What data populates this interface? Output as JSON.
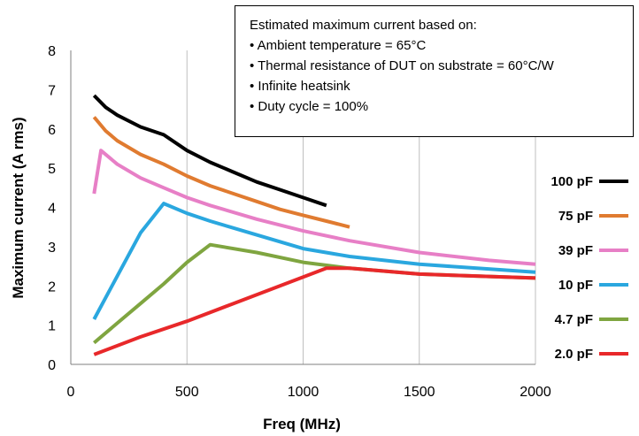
{
  "chart_data": {
    "type": "line",
    "xlabel": "Freq (MHz)",
    "ylabel": "Maximum current (A rms)",
    "xlim": [
      0,
      2000
    ],
    "ylim": [
      0,
      8
    ],
    "x_ticks": [
      0,
      500,
      1000,
      1500,
      2000
    ],
    "y_ticks": [
      0,
      1,
      2,
      3,
      4,
      5,
      6,
      7,
      8
    ],
    "grid": "vertical",
    "legend_position": "right",
    "annotation": {
      "title": "Estimated maximum current based on:",
      "items": [
        "• Ambient temperature = 65°C",
        "• Thermal resistance of DUT on substrate = 60°C/W",
        "• Infinite heatsink",
        "• Duty cycle = 100%"
      ]
    },
    "series": [
      {
        "name": "100 pF",
        "color": "#000000",
        "x": [
          100,
          150,
          200,
          300,
          400,
          500,
          600,
          700,
          800,
          900,
          1000,
          1100
        ],
        "y": [
          6.85,
          6.55,
          6.35,
          6.05,
          5.85,
          5.45,
          5.15,
          4.9,
          4.65,
          4.45,
          4.25,
          4.05
        ]
      },
      {
        "name": "75 pF",
        "color": "#E07B30",
        "x": [
          100,
          150,
          200,
          300,
          400,
          500,
          600,
          700,
          800,
          900,
          1000,
          1100,
          1200
        ],
        "y": [
          6.3,
          5.95,
          5.7,
          5.35,
          5.1,
          4.8,
          4.55,
          4.35,
          4.15,
          3.95,
          3.8,
          3.65,
          3.5
        ]
      },
      {
        "name": "39 pF",
        "color": "#E77FC6",
        "x": [
          100,
          130,
          200,
          300,
          400,
          500,
          600,
          800,
          1000,
          1200,
          1500,
          1800,
          2000
        ],
        "y": [
          4.35,
          5.45,
          5.1,
          4.75,
          4.5,
          4.25,
          4.05,
          3.7,
          3.4,
          3.15,
          2.85,
          2.65,
          2.55
        ]
      },
      {
        "name": "10 pF",
        "color": "#2AA7DF",
        "x": [
          100,
          200,
          300,
          400,
          500,
          600,
          800,
          1000,
          1200,
          1500,
          2000
        ],
        "y": [
          1.15,
          2.25,
          3.35,
          4.1,
          3.85,
          3.65,
          3.3,
          2.95,
          2.75,
          2.55,
          2.35
        ]
      },
      {
        "name": "4.7 pF",
        "color": "#7FA540",
        "x": [
          100,
          200,
          300,
          400,
          500,
          600,
          800,
          1000,
          1200,
          1500,
          2000
        ],
        "y": [
          0.55,
          1.05,
          1.55,
          2.05,
          2.6,
          3.05,
          2.85,
          2.6,
          2.45,
          2.3,
          2.2
        ]
      },
      {
        "name": "2.0 pF",
        "color": "#E8282A",
        "x": [
          100,
          300,
          500,
          700,
          900,
          1100,
          1200,
          1500,
          2000
        ],
        "y": [
          0.25,
          0.7,
          1.1,
          1.55,
          2.0,
          2.45,
          2.45,
          2.3,
          2.2
        ]
      }
    ]
  }
}
